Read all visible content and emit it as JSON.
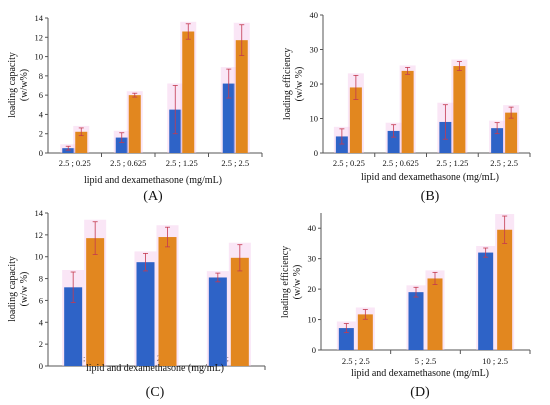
{
  "colors": {
    "series_1": "#2e63c7",
    "series_2": "#e2871f",
    "error_bar": "#c43a50",
    "halo": "#f5c8ec"
  },
  "chart_data": [
    {
      "panel": "(A)",
      "type": "bar",
      "categories": [
        "2.5 ; 0.25",
        "2.5 ; 0.625",
        "2.5 ; 1.25",
        "2.5 ; 2.5"
      ],
      "series": [
        {
          "values": [
            0.5,
            1.6,
            4.5,
            7.2
          ],
          "errors": [
            0.2,
            0.5,
            2.5,
            1.5
          ]
        },
        {
          "values": [
            2.2,
            6.0,
            12.6,
            11.7
          ],
          "errors": [
            0.4,
            0.2,
            0.8,
            1.6
          ]
        }
      ],
      "xlabel": "lipid and dexamethasone (mg/mL)",
      "ylabel": [
        "loading capacity",
        "(w/w%)"
      ],
      "ylim": [
        0,
        14
      ],
      "yticks": [
        0,
        2,
        4,
        6,
        8,
        10,
        12,
        14
      ]
    },
    {
      "panel": "(B)",
      "type": "bar",
      "categories": [
        "2.5 ; 0.25",
        "2.5 ; 0.625",
        "2.5 ; 1.25",
        "2.5 ; 2.5"
      ],
      "series": [
        {
          "values": [
            4.8,
            6.4,
            9.0,
            7.2
          ],
          "errors": [
            2.2,
            1.8,
            5.0,
            1.6
          ]
        },
        {
          "values": [
            19.0,
            23.8,
            25.2,
            11.7
          ],
          "errors": [
            3.5,
            1.0,
            1.3,
            1.6
          ]
        }
      ],
      "xlabel": "lipid and dexamethasone (mg/mL)",
      "ylabel": [
        "loading efficiency",
        "(w/w %)"
      ],
      "ylim": [
        0,
        40
      ],
      "yticks": [
        0,
        10,
        20,
        30,
        40
      ]
    },
    {
      "panel": "(C)",
      "type": "bar",
      "categories": [
        "2.5 ; 2.5",
        "5 ; 2.5",
        "10 ; 2.5"
      ],
      "series": [
        {
          "values": [
            7.2,
            9.5,
            8.1
          ],
          "errors": [
            1.4,
            0.8,
            0.4
          ]
        },
        {
          "values": [
            11.7,
            11.8,
            9.9
          ],
          "errors": [
            1.5,
            0.9,
            1.2
          ]
        }
      ],
      "xlabel": "lipid and dexamethasone (mg/mL)",
      "ylabel": [
        "loading capacity",
        "(w/w %)"
      ],
      "ylim": [
        0,
        14
      ],
      "yticks": [
        0,
        2,
        4,
        6,
        8,
        10,
        12,
        14
      ]
    },
    {
      "panel": "(D)",
      "type": "bar",
      "categories": [
        "2.5 ; 2.5",
        "5 ; 2.5",
        "10 ; 2.5"
      ],
      "series": [
        {
          "values": [
            7.2,
            19.0,
            32.0
          ],
          "errors": [
            1.5,
            1.6,
            1.5
          ]
        },
        {
          "values": [
            11.7,
            23.5,
            39.5
          ],
          "errors": [
            1.6,
            2.0,
            4.5
          ]
        }
      ],
      "xlabel": "lipid and dexamethasone (mg/mL)",
      "ylabel": [
        "loading efficiency",
        "(w/w %)"
      ],
      "ylim": [
        0,
        45
      ],
      "yticks": [
        0,
        10,
        20,
        30,
        40
      ]
    }
  ]
}
